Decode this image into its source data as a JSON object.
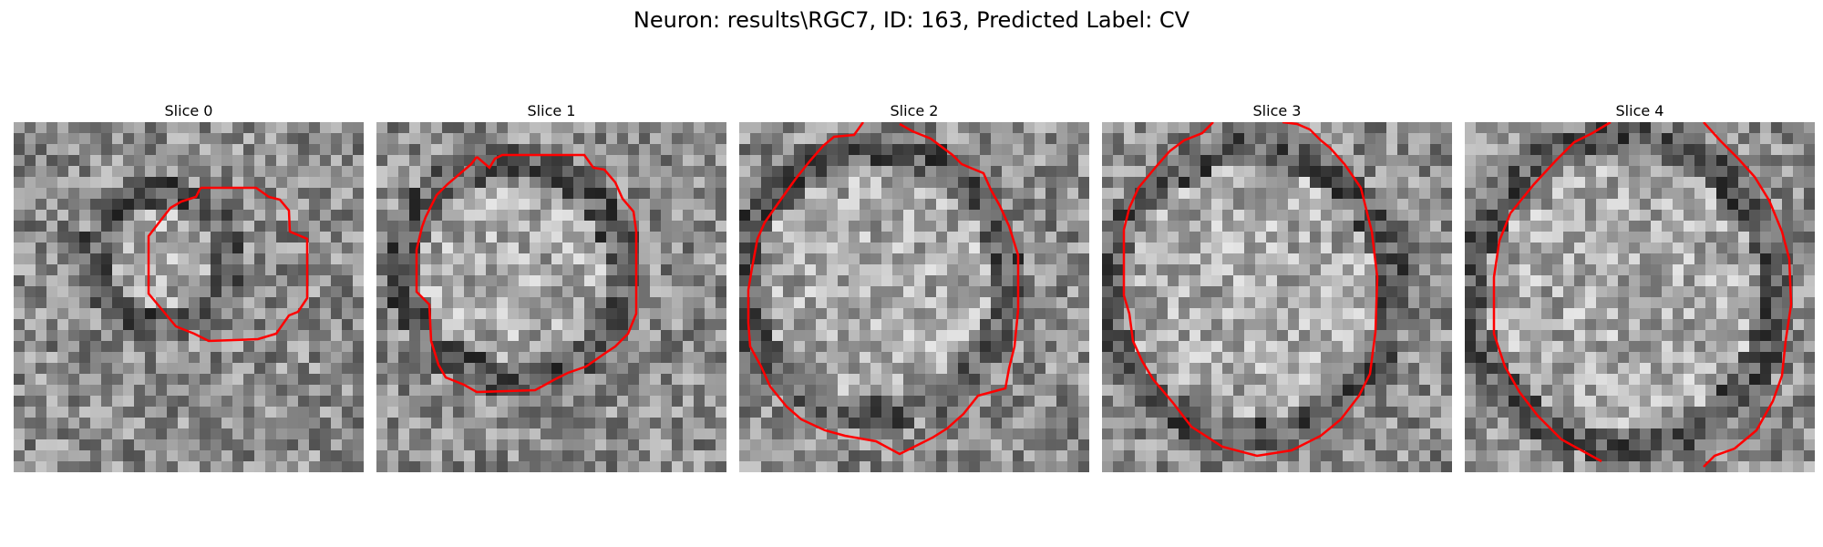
{
  "title": "Neuron: results\\RGC7, ID: 163, Predicted Label: CV",
  "panels": [
    {
      "label": "Slice 0"
    },
    {
      "label": "Slice 1"
    },
    {
      "label": "Slice 2"
    },
    {
      "label": "Slice 3"
    },
    {
      "label": "Slice 4"
    }
  ],
  "contour_color": "#ff0000",
  "colormap": "grayscale"
}
